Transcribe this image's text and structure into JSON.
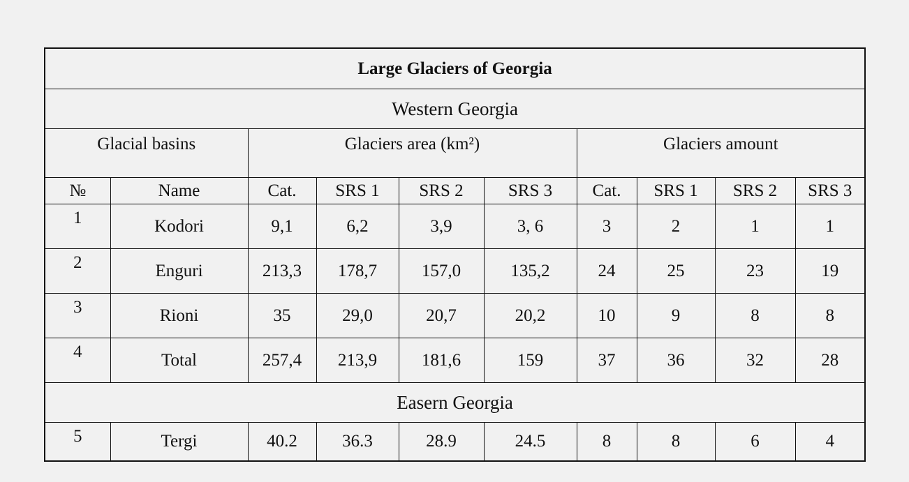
{
  "table": {
    "title": "Large Glaciers of Georgia",
    "sections": [
      "Western Georgia",
      "Easern Georgia"
    ],
    "groups": [
      "Glacial basins",
      "Glaciers area (km²)",
      "Glaciers amount"
    ],
    "columns": [
      "№",
      "Name",
      "Cat.",
      "SRS 1",
      "SRS 2",
      "SRS 3",
      "Cat.",
      "SRS 1",
      "SRS 2",
      "SRS 3"
    ],
    "rows": [
      [
        "1",
        "Kodori",
        "9,1",
        "6,2",
        "3,9",
        "3, 6",
        "3",
        "2",
        "1",
        "1"
      ],
      [
        "2",
        "Enguri",
        "213,3",
        "178,7",
        "157,0",
        "135,2",
        "24",
        "25",
        "23",
        "19"
      ],
      [
        "3",
        "Rioni",
        "35",
        "29,0",
        "20,7",
        "20,2",
        "10",
        "9",
        "8",
        "8"
      ],
      [
        "4",
        "Total",
        "257,4",
        "213,9",
        "181,6",
        "159",
        "37",
        "36",
        "32",
        "28"
      ]
    ],
    "eastern_rows": [
      [
        "5",
        "Tergi",
        "40.2",
        "36.3",
        "28.9",
        "24.5",
        "8",
        "8",
        "6",
        "4"
      ]
    ]
  }
}
